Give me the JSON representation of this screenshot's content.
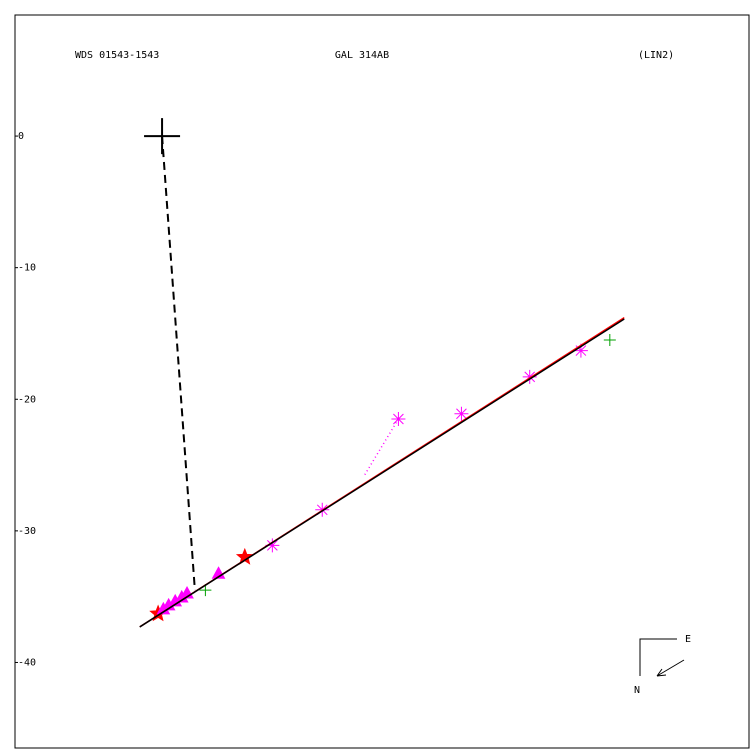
{
  "chart_data": {
    "type": "scatter",
    "header_left": "WDS 01543-1543",
    "header_center": "GAL 314AB",
    "header_right": "(LIN2)",
    "compass_east": "E",
    "compass_north": "N",
    "xlim": [
      -11.2,
      44.7
    ],
    "ylim": [
      -46.5,
      9.2
    ],
    "yticks": [
      0,
      -10,
      -20,
      -30,
      -40
    ],
    "primary": {
      "x": 0,
      "y": 0,
      "color": "#000000"
    },
    "series": [
      {
        "marker": "asterisk",
        "color": "#ff00ff",
        "x": [
          31.9,
          28.0,
          22.8,
          18.0,
          12.2,
          8.4
        ],
        "values": [
          -16.3,
          -18.3,
          -21.1,
          -21.5,
          -28.4,
          -31.1
        ]
      },
      {
        "marker": "plus",
        "color": "#00a000",
        "x": [
          34.1,
          3.3
        ],
        "values": [
          -15.5,
          -34.5
        ]
      },
      {
        "marker": "star",
        "color": "#ff0000",
        "x": [
          6.3,
          -0.3
        ],
        "values": [
          -32.0,
          -36.3
        ]
      },
      {
        "marker": "triangle",
        "color": "#ff00ff",
        "x": [
          4.3,
          1.9,
          1.5,
          1.0,
          0.5,
          0.1
        ],
        "values": [
          -33.3,
          -34.8,
          -35.1,
          -35.4,
          -35.7,
          -36.0
        ]
      },
      {
        "marker": "solid",
        "color": "#ff0000",
        "x": [
          -1.7,
          35.2
        ],
        "values": [
          -37.3,
          -13.8
        ]
      },
      {
        "marker": "solid",
        "color": "#000000",
        "x": [
          -1.7,
          35.2
        ],
        "values": [
          -37.3,
          -13.9
        ]
      },
      {
        "marker": "dashed",
        "color": "#000000",
        "x": [
          0,
          2.5
        ],
        "values": [
          0,
          -34.5
        ]
      },
      {
        "marker": "dotted",
        "color": "#ff00ff",
        "x": [
          18.0,
          15.4
        ],
        "values": [
          -21.5,
          -25.8
        ]
      }
    ]
  }
}
